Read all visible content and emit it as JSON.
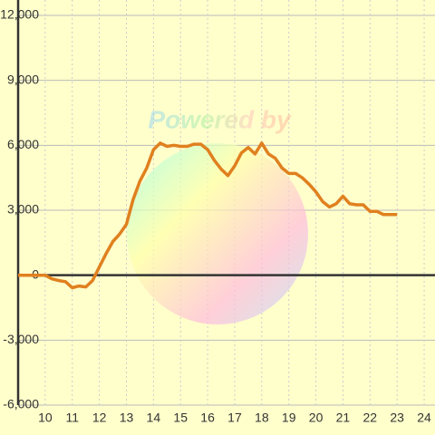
{
  "chart_data": {
    "type": "line",
    "watermark": "Powered by",
    "x": [
      9,
      9.5,
      10,
      10.25,
      10.5,
      10.75,
      11,
      11.25,
      11.5,
      11.75,
      12,
      12.25,
      12.5,
      12.75,
      13,
      13.25,
      13.5,
      13.75,
      14,
      14.25,
      14.5,
      14.75,
      15,
      15.25,
      15.5,
      15.75,
      16,
      16.25,
      16.5,
      16.75,
      17,
      17.25,
      17.5,
      17.75,
      18,
      18.25,
      18.5,
      18.75,
      19,
      19.25,
      19.5,
      19.75,
      20,
      20.25,
      20.5,
      20.75,
      21,
      21.25,
      21.5,
      21.75,
      22,
      22.25,
      22.5,
      22.75,
      23
    ],
    "values": [
      0,
      0,
      0,
      -170,
      -250,
      -300,
      -580,
      -500,
      -540,
      -250,
      380,
      1000,
      1550,
      1900,
      2350,
      3500,
      4350,
      4950,
      5800,
      6100,
      5950,
      6000,
      5950,
      5950,
      6050,
      6050,
      5800,
      5300,
      4900,
      4600,
      5050,
      5650,
      5900,
      5600,
      6100,
      5600,
      5400,
      4950,
      4700,
      4700,
      4500,
      4200,
      3850,
      3400,
      3150,
      3300,
      3650,
      3300,
      3250,
      3250,
      2950,
      2950,
      2800,
      2800,
      2800
    ],
    "color": "#e0801f",
    "xlim": [
      9,
      24.4
    ],
    "xticks": [
      10,
      11,
      12,
      13,
      14,
      15,
      16,
      17,
      18,
      19,
      20,
      21,
      22,
      23,
      24
    ],
    "ylim": [
      -6000,
      12000
    ],
    "yticks": [
      {
        "value": -6000,
        "label": "-6,000"
      },
      {
        "value": -3000,
        "label": "-3,000"
      },
      0,
      {
        "value": 3000,
        "label": "3,000"
      },
      {
        "value": 6000,
        "label": "6,000"
      },
      {
        "value": 9000,
        "label": "9,000"
      },
      {
        "value": 12000,
        "label": "12,000"
      }
    ],
    "grid": true
  }
}
